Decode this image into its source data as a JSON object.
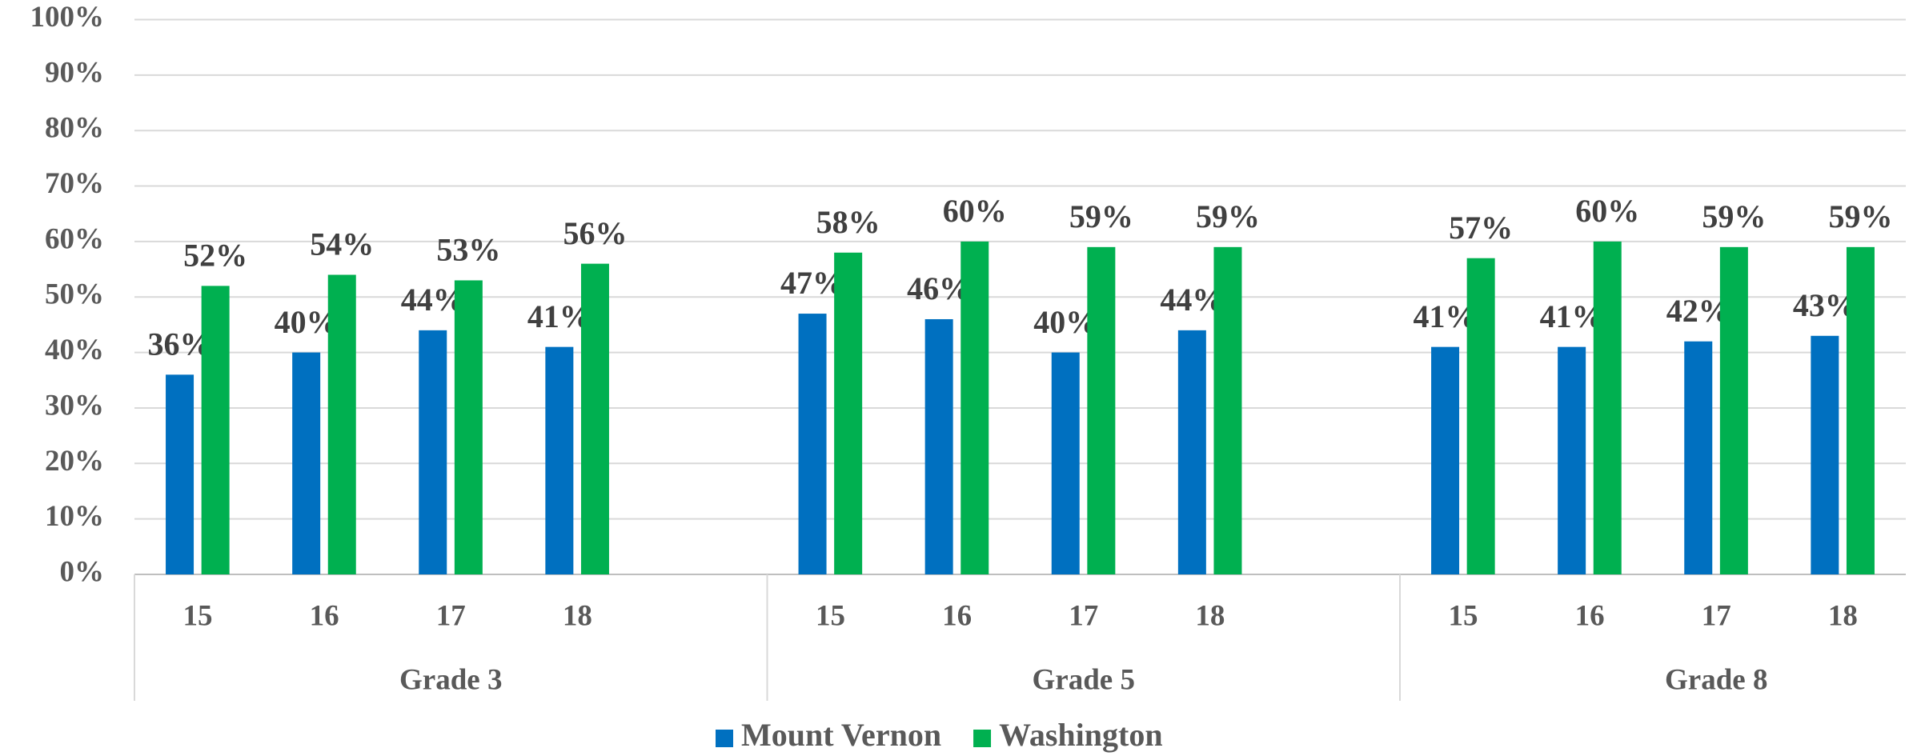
{
  "chart_data": {
    "type": "bar",
    "groups": [
      "Grade 3",
      "Grade 5",
      "Grade 8"
    ],
    "categories": [
      "15",
      "16",
      "17",
      "18",
      null,
      "15",
      "16",
      "17",
      "18",
      null,
      "15",
      "16",
      "17",
      "18",
      null
    ],
    "series": [
      {
        "name": "Mount Vernon",
        "color": "#0070c0",
        "values": [
          36,
          40,
          44,
          41,
          null,
          47,
          46,
          40,
          44,
          null,
          41,
          41,
          42,
          43,
          null
        ],
        "value_labels": [
          "36%",
          "40%",
          "44%",
          "41%",
          null,
          "47%",
          "46%",
          "40%",
          "44%",
          null,
          "41%",
          "41%",
          "42%",
          "43%",
          null
        ]
      },
      {
        "name": "Washington",
        "color": "#00b050",
        "values": [
          52,
          54,
          53,
          56,
          null,
          58,
          60,
          59,
          59,
          null,
          57,
          60,
          59,
          59,
          null
        ],
        "value_labels": [
          "52%",
          "54%",
          "53%",
          "56%",
          null,
          "58%",
          "60%",
          "59%",
          "59%",
          null,
          "57%",
          "60%",
          "59%",
          "59%",
          null
        ]
      }
    ],
    "ylim": [
      0,
      100
    ],
    "yticks": [
      {
        "value": 0,
        "label": "0%"
      },
      {
        "value": 10,
        "label": "10%"
      },
      {
        "value": 20,
        "label": "20%"
      },
      {
        "value": 30,
        "label": "30%"
      },
      {
        "value": 40,
        "label": "40%"
      },
      {
        "value": 50,
        "label": "50%"
      },
      {
        "value": 60,
        "label": "60%"
      },
      {
        "value": 70,
        "label": "70%"
      },
      {
        "value": 80,
        "label": "80%"
      },
      {
        "value": 90,
        "label": "90%"
      },
      {
        "value": 100,
        "label": "100%"
      }
    ],
    "grid": true,
    "legend": "bottom"
  }
}
